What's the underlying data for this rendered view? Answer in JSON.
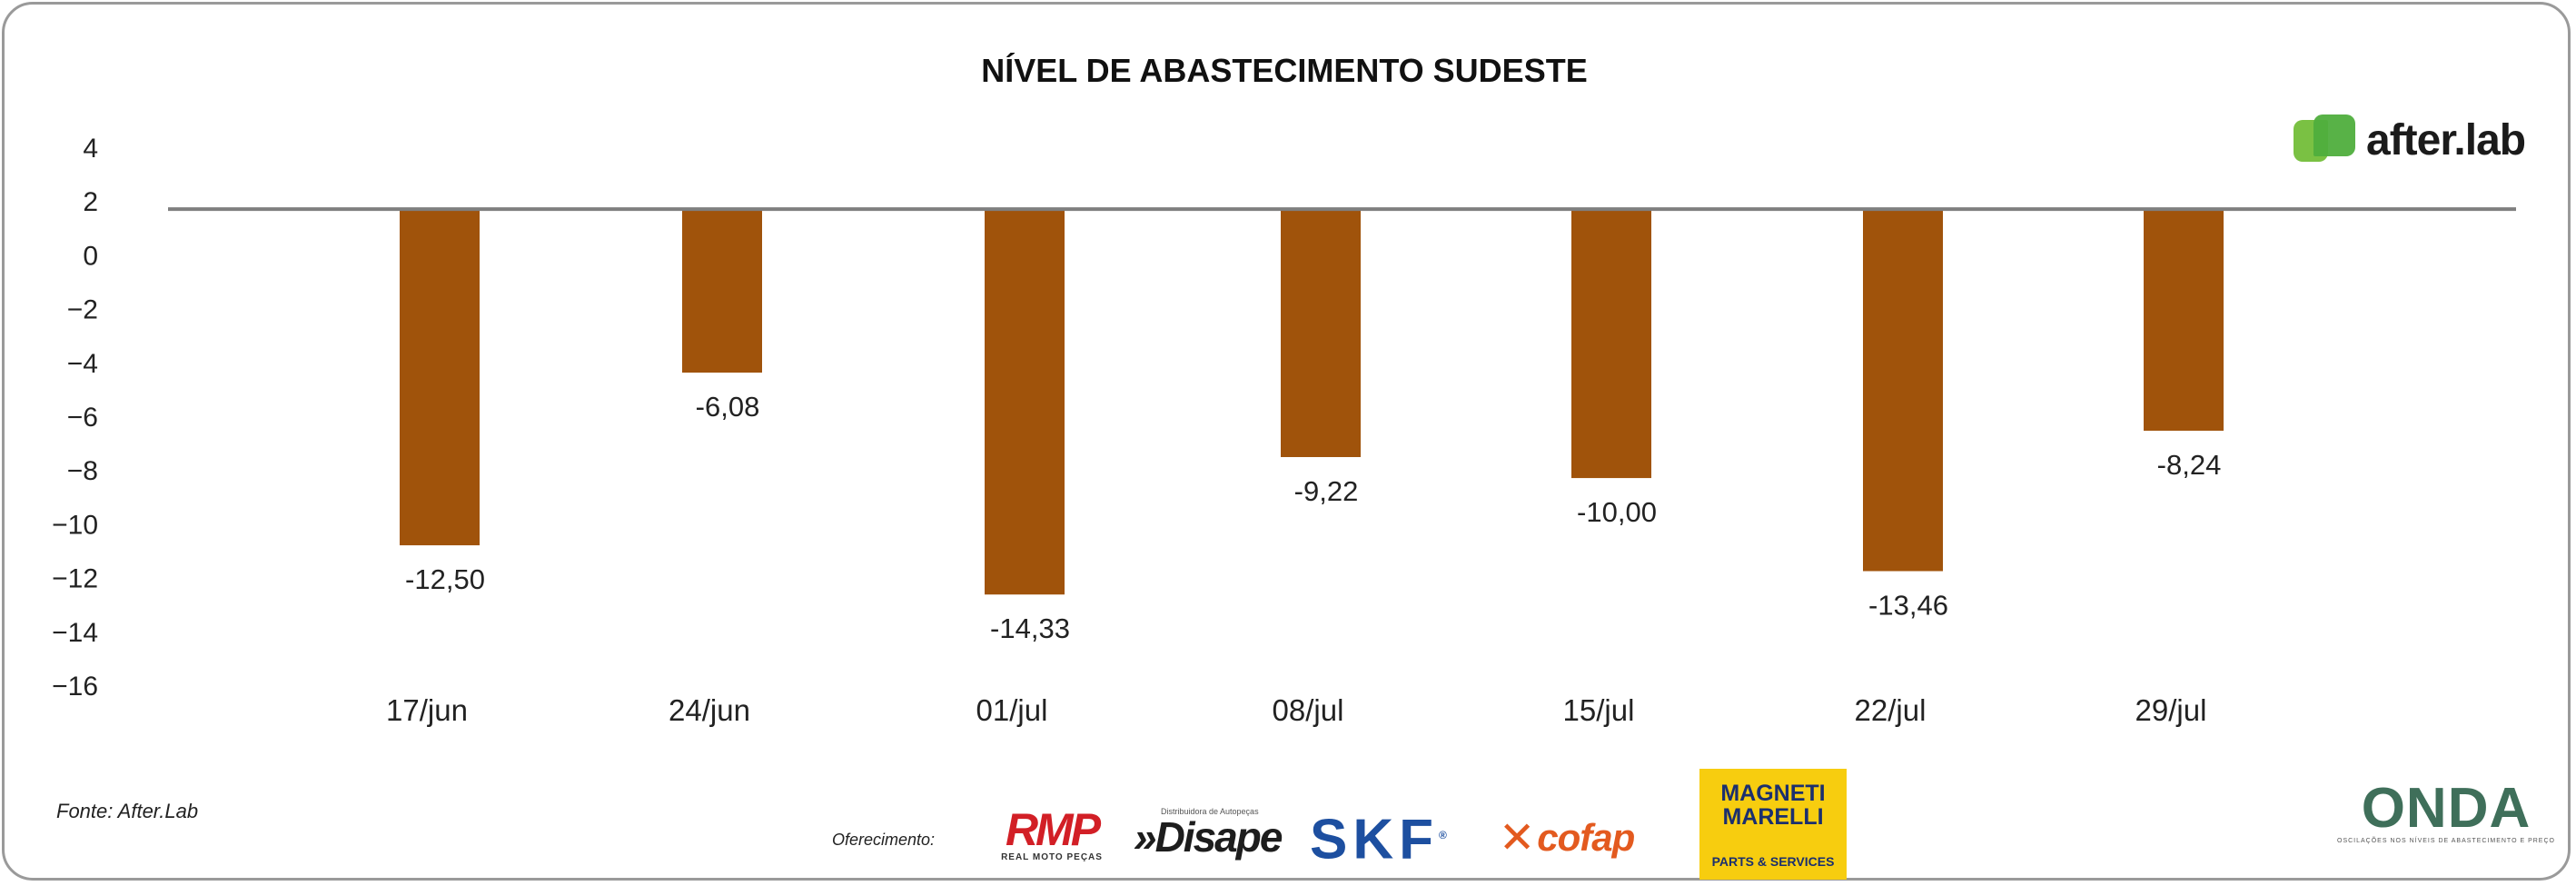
{
  "chart_data": {
    "type": "bar",
    "title": "NÍVEL DE ABASTECIMENTO SUDESTE",
    "categories": [
      "17/jun",
      "24/jun",
      "01/jul",
      "08/jul",
      "15/jul",
      "22/jul",
      "29/jul"
    ],
    "values": [
      -12.5,
      -6.08,
      -14.33,
      -9.22,
      -10.0,
      -13.46,
      -8.24
    ],
    "value_labels": [
      "-12,50",
      "-6,08",
      "-14,33",
      "-9,22",
      "-10,00",
      "-13,46",
      "-8,24"
    ],
    "ylim": [
      -16,
      4
    ],
    "yticks": [
      4,
      2,
      0,
      -2,
      -4,
      -6,
      -8,
      -10,
      -12,
      -14,
      -16
    ],
    "baseline_value": 1.7,
    "xlabel": "",
    "ylabel": "",
    "legend": "none",
    "grid": false,
    "bar_color": "#a0530b",
    "baseline_color": "#7f7f7f"
  },
  "footer": {
    "source": "Fonte: After.Lab",
    "offered": "Oferecimento:"
  },
  "logos": {
    "after_lab": {
      "text": "after.lab",
      "icon": "after-lab-logo-icon",
      "color": "#7ac143"
    },
    "rmp": {
      "text": "RMP",
      "subtext": "REAL MOTO PEÇAS"
    },
    "disape": {
      "text": "»Disape",
      "tagline": "Distribuidora de Autopeças"
    },
    "skf": {
      "text": "SKF"
    },
    "cofap": {
      "text": "cofap"
    },
    "magneti_marelli": {
      "line1": "MAGNETI",
      "line2": "MARELLI",
      "line3": "PARTS & SERVICES"
    },
    "onda": {
      "text": "ONDA",
      "subtext": "OSCILAÇÕES NOS NÍVEIS DE ABASTECIMENTO E PREÇO"
    }
  }
}
